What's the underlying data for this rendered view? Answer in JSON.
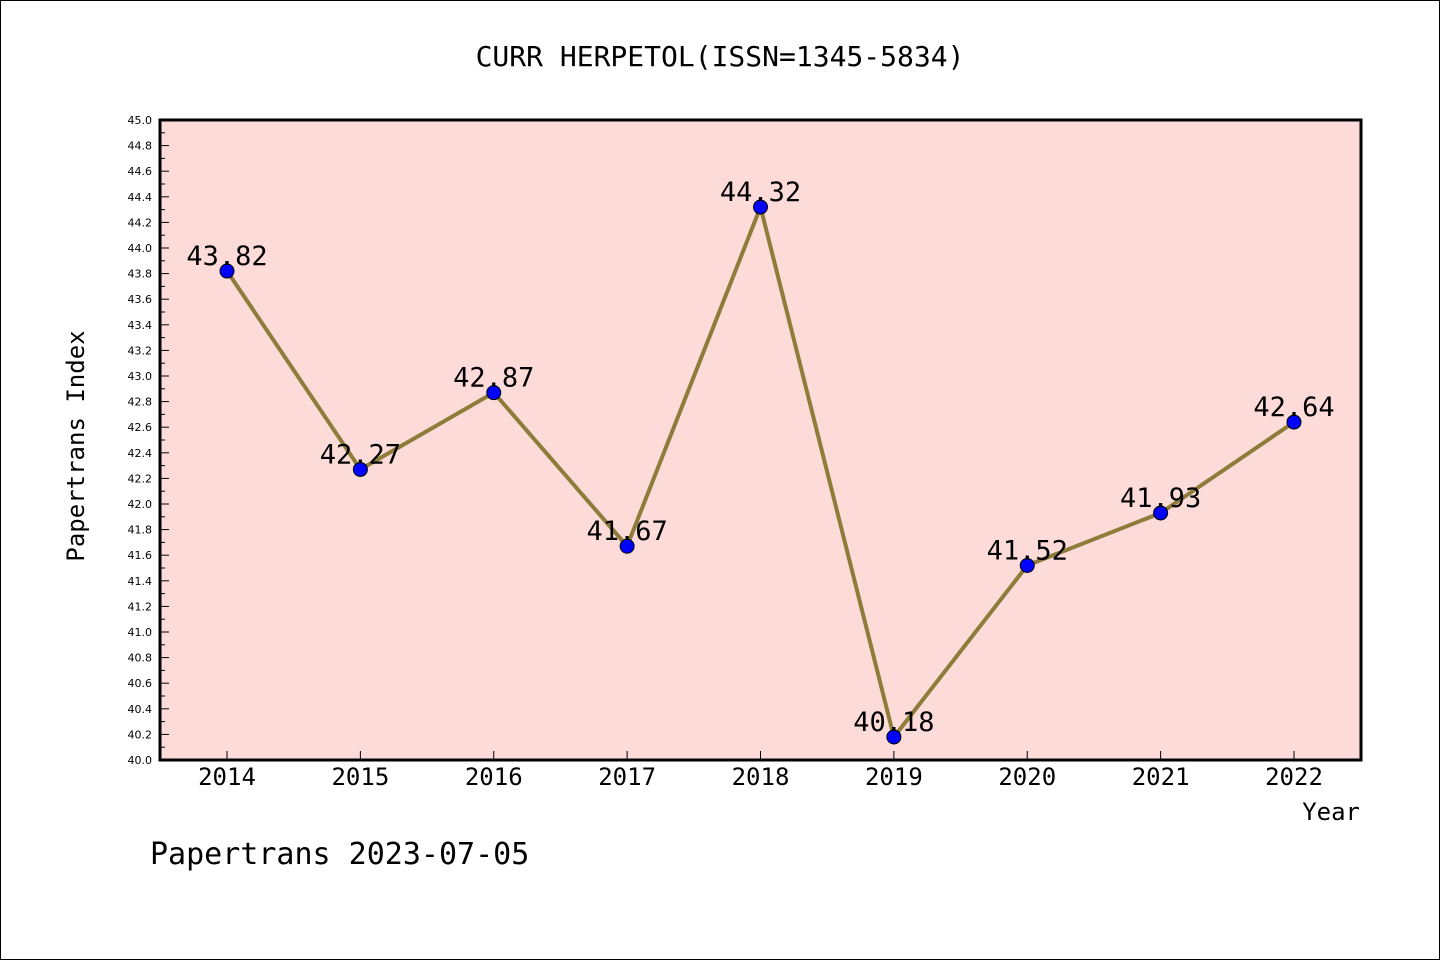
{
  "chart_data": {
    "type": "line",
    "title": "CURR HERPETOL(ISSN=1345-5834)",
    "xlabel": "Year",
    "ylabel": "Papertrans Index",
    "categories": [
      "2014",
      "2015",
      "2016",
      "2017",
      "2018",
      "2019",
      "2020",
      "2021",
      "2022"
    ],
    "series": [
      {
        "values": [
          43.82,
          42.27,
          42.87,
          41.67,
          44.32,
          40.18,
          41.52,
          41.93,
          42.64
        ]
      }
    ],
    "data_labels": [
      "43.82",
      "42.27",
      "42.87",
      "41.67",
      "44.32",
      "40.18",
      "41.52",
      "41.93",
      "42.64"
    ],
    "ylim": [
      40.0,
      45.0
    ],
    "ytick_step": 0.2,
    "grid": false,
    "footer": "Papertrans 2023-07-05",
    "colors": {
      "plot_background": "#fddbd9",
      "line": "#8e7d3a",
      "marker": "#0000ff",
      "axis": "#000000"
    }
  }
}
